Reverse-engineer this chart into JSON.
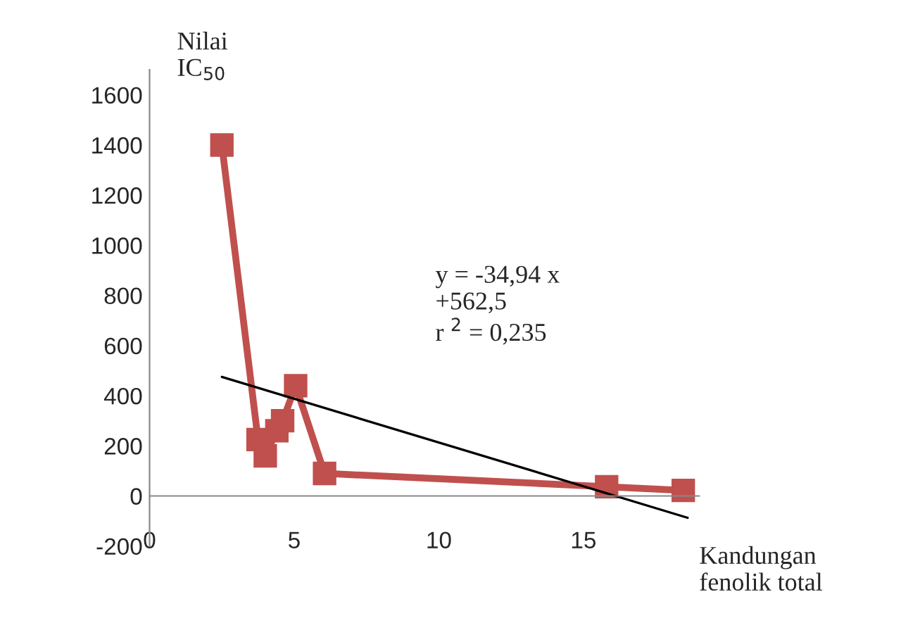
{
  "chart_data": {
    "type": "line",
    "xlabel": "Kandungan\nfenolik total",
    "ylabel": "Nilai\nIC$_{50}$",
    "xlim": [
      0,
      19
    ],
    "xticks": [
      0,
      5,
      10,
      15
    ],
    "ylim": [
      -200,
      1700
    ],
    "yticks": [
      -200,
      0,
      200,
      400,
      600,
      800,
      1000,
      1200,
      1400,
      1600
    ],
    "grid": false,
    "legend": false,
    "series": [
      {
        "color": "#c0504d",
        "marker": "square",
        "line_style": "solid",
        "x": [
          2.5,
          3.75,
          4.0,
          4.4,
          4.6,
          5.05,
          6.05,
          15.8,
          18.45
        ],
        "values": [
          1400,
          225,
          160,
          260,
          300,
          440,
          90,
          37,
          22
        ]
      },
      {
        "color": "#000000",
        "marker": "none",
        "line_style": "solid",
        "x": [
          2.5,
          18.6
        ],
        "values": [
          475,
          -87
        ]
      }
    ],
    "annotations": [
      "y = -34,94 x\n+562,5\nr $^{2}$ = 0,235"
    ]
  }
}
